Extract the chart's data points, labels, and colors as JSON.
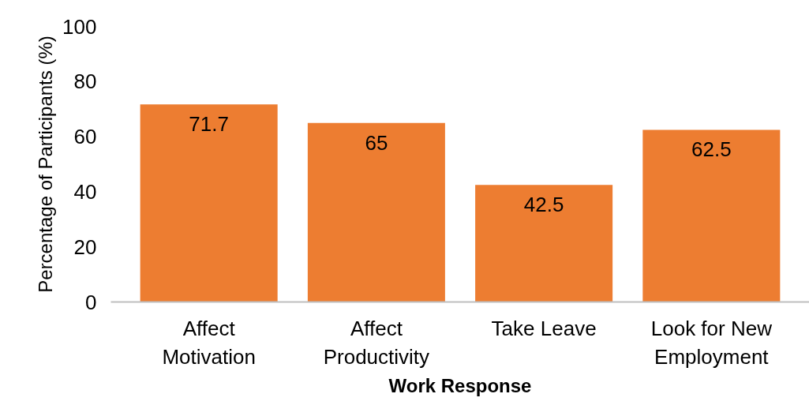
{
  "chart_data": {
    "type": "bar",
    "xlabel": "Work Response",
    "ylabel": "Percentage of Participants (%)",
    "categories": [
      "Affect Motivation",
      "Affect Productivity",
      "Take Leave",
      "Look for New Employment"
    ],
    "values": [
      71.7,
      65,
      42.5,
      62.5
    ],
    "color": "#ed7d31",
    "data_labels": true,
    "ylim": [
      0,
      100
    ],
    "yticks": [
      0,
      20,
      40,
      60,
      80,
      100
    ],
    "grid": false
  }
}
